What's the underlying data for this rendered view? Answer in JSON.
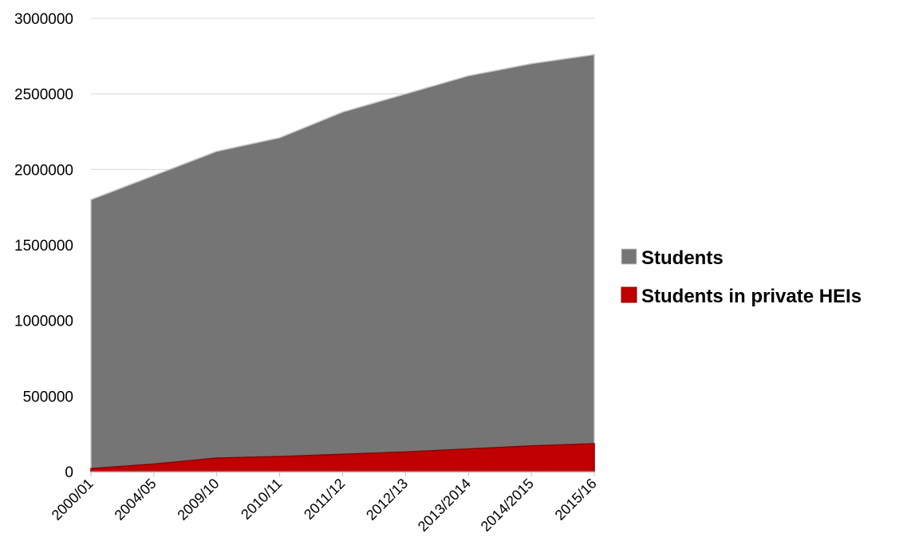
{
  "chart_data": {
    "type": "area",
    "categories": [
      "2000/01",
      "2004/05",
      "2009/10",
      "2010/11",
      "2011/12",
      "2012/13",
      "2013/2014",
      "2014/2015",
      "2015/16"
    ],
    "series": [
      {
        "name": "Students",
        "values": [
          1800000,
          1960000,
          2120000,
          2210000,
          2380000,
          2500000,
          2620000,
          2700000,
          2760000
        ],
        "color": "#757575",
        "stroke": "#c8c8c8"
      },
      {
        "name": "Students in private HEIs",
        "values": [
          20000,
          50000,
          90000,
          100000,
          115000,
          130000,
          150000,
          170000,
          185000
        ],
        "color": "#c00000",
        "stroke": "#8b0000"
      }
    ],
    "yticks": [
      "0",
      "500000",
      "1000000",
      "1500000",
      "2000000",
      "2500000",
      "3000000"
    ],
    "ylim": [
      0,
      3000000
    ],
    "grid": true,
    "legend_position": "right",
    "title": "",
    "xlabel": "",
    "ylabel": ""
  }
}
